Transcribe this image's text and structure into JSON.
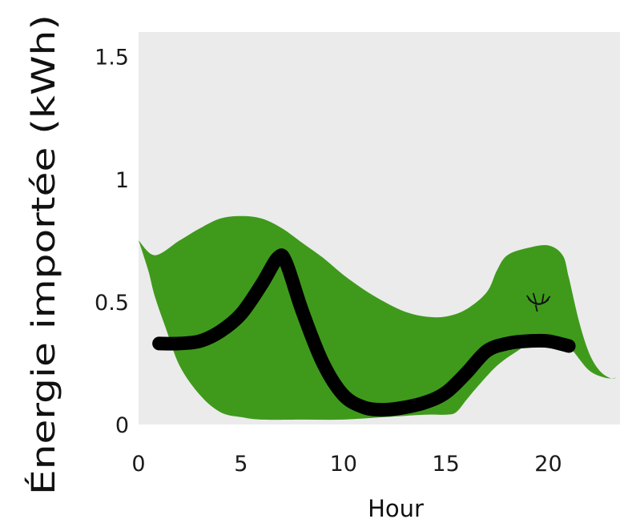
{
  "chart_data": {
    "type": "area",
    "title": "",
    "xlabel": "Hour",
    "ylabel": "Énergie importée (kWh)",
    "xlim": [
      0,
      23.5
    ],
    "ylim": [
      0,
      1.6
    ],
    "x_ticks": [
      0,
      5,
      10,
      15,
      20
    ],
    "y_ticks": [
      {
        "value": 0,
        "label": "0"
      },
      {
        "value": 0.5,
        "label": "0.5"
      },
      {
        "value": 1,
        "label": "1"
      },
      {
        "value": 1.5,
        "label": "1.5"
      }
    ],
    "grid": false,
    "background_color": "#ebebeb",
    "band": {
      "color": "#3f9a1c",
      "upper": [
        [
          0,
          0.75
        ],
        [
          0.8,
          0.69
        ],
        [
          2,
          0.75
        ],
        [
          3,
          0.8
        ],
        [
          4,
          0.84
        ],
        [
          5,
          0.85
        ],
        [
          6,
          0.84
        ],
        [
          7,
          0.8
        ],
        [
          8,
          0.74
        ],
        [
          9,
          0.68
        ],
        [
          10,
          0.61
        ],
        [
          11,
          0.55
        ],
        [
          12,
          0.5
        ],
        [
          13,
          0.46
        ],
        [
          14,
          0.44
        ],
        [
          15,
          0.44
        ],
        [
          16,
          0.47
        ],
        [
          17,
          0.54
        ],
        [
          17.5,
          0.63
        ],
        [
          18,
          0.69
        ],
        [
          19,
          0.72
        ],
        [
          20,
          0.73
        ],
        [
          20.7,
          0.69
        ],
        [
          21,
          0.6
        ],
        [
          21.5,
          0.42
        ],
        [
          22,
          0.29
        ],
        [
          22.5,
          0.22
        ],
        [
          23,
          0.19
        ],
        [
          23.3,
          0.19
        ]
      ],
      "lower": [
        [
          23.3,
          0.19
        ],
        [
          22.8,
          0.19
        ],
        [
          22,
          0.22
        ],
        [
          21.2,
          0.3
        ],
        [
          20.5,
          0.36
        ],
        [
          19.5,
          0.35
        ],
        [
          18.5,
          0.3
        ],
        [
          17.5,
          0.24
        ],
        [
          16.5,
          0.15
        ],
        [
          16,
          0.1
        ],
        [
          15.5,
          0.05
        ],
        [
          15,
          0.04
        ],
        [
          14,
          0.04
        ],
        [
          12,
          0.03
        ],
        [
          10,
          0.02
        ],
        [
          8,
          0.02
        ],
        [
          6,
          0.02
        ],
        [
          5,
          0.03
        ],
        [
          4,
          0.05
        ],
        [
          3,
          0.12
        ],
        [
          2,
          0.24
        ],
        [
          1.3,
          0.4
        ],
        [
          0.8,
          0.52
        ],
        [
          0.5,
          0.62
        ],
        [
          0.2,
          0.7
        ],
        [
          0,
          0.75
        ]
      ]
    },
    "series": [
      {
        "color": "#000000",
        "points": [
          [
            1,
            0.33
          ],
          [
            2,
            0.33
          ],
          [
            3,
            0.34
          ],
          [
            4,
            0.38
          ],
          [
            5,
            0.45
          ],
          [
            6,
            0.57
          ],
          [
            6.8,
            0.68
          ],
          [
            7.2,
            0.66
          ],
          [
            8,
            0.46
          ],
          [
            9,
            0.25
          ],
          [
            10,
            0.12
          ],
          [
            11,
            0.07
          ],
          [
            12,
            0.06
          ],
          [
            13,
            0.07
          ],
          [
            14,
            0.09
          ],
          [
            15,
            0.13
          ],
          [
            16,
            0.21
          ],
          [
            17,
            0.3
          ],
          [
            18,
            0.33
          ],
          [
            19,
            0.34
          ],
          [
            20,
            0.34
          ],
          [
            21,
            0.32
          ]
        ]
      }
    ],
    "annotation": {
      "icon": "closed-eye-icon",
      "x": 19.5,
      "y": 0.5
    }
  }
}
